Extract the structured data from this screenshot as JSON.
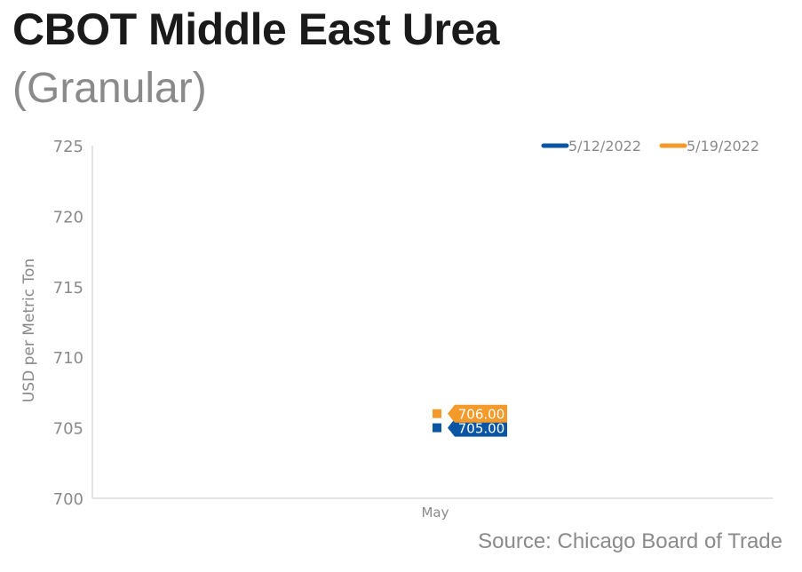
{
  "title": "CBOT Middle East Urea",
  "subtitle": "(Granular)",
  "source": "Source: Chicago Board of Trade",
  "chart_data": {
    "type": "scatter",
    "categories": [
      "May"
    ],
    "ylabel": "USD per Metric Ton",
    "xlabel": "",
    "ylim": [
      700,
      725
    ],
    "yticks": [
      700,
      705,
      710,
      715,
      720,
      725
    ],
    "grid": false,
    "legend_position": "top-right",
    "series": [
      {
        "name": "5/12/2022",
        "color": "#0a56a4",
        "values": [
          705.0
        ],
        "labels": [
          "705.00"
        ]
      },
      {
        "name": "5/19/2022",
        "color": "#f49a2b",
        "values": [
          706.0
        ],
        "labels": [
          "706.00"
        ]
      }
    ]
  }
}
